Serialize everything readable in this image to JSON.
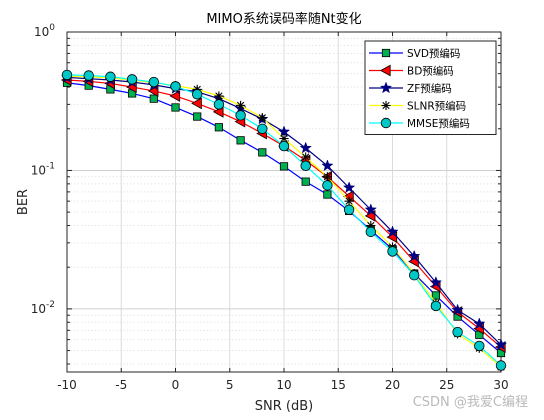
{
  "chart_data": {
    "type": "line",
    "title": "MIMO系统误码率随Nt变化",
    "xlabel": "SNR (dB)",
    "ylabel": "BER",
    "x_ticks": [
      "-10",
      "-5",
      "0",
      "5",
      "10",
      "15",
      "20",
      "25",
      "30"
    ],
    "y_ticks": [
      {
        "base": "10",
        "exp": "0"
      },
      {
        "base": "10",
        "exp": "-1"
      },
      {
        "base": "10",
        "exp": "-2"
      }
    ],
    "xlim": [
      -10,
      30
    ],
    "ylim": [
      0.0035,
      1
    ],
    "yscale": "log",
    "grid": true,
    "legend_position": "top-right",
    "x": [
      -10,
      -8,
      -6,
      -4,
      -2,
      0,
      2,
      4,
      6,
      8,
      10,
      12,
      14,
      16,
      18,
      20,
      22,
      24,
      26,
      28,
      30
    ],
    "series": [
      {
        "name": "SVD预编码",
        "color": "#0000ff",
        "marker": "square",
        "marker_fill": "#00b050",
        "values": [
          0.43,
          0.41,
          0.385,
          0.36,
          0.33,
          0.285,
          0.245,
          0.205,
          0.165,
          0.135,
          0.107,
          0.083,
          0.067,
          0.051,
          0.037,
          0.027,
          0.018,
          0.0125,
          0.0088,
          0.0065,
          0.0048
        ]
      },
      {
        "name": "BD预编码",
        "color": "#ff0000",
        "marker": "triangle-left",
        "marker_fill": "#ff0000",
        "values": [
          0.45,
          0.44,
          0.425,
          0.4,
          0.375,
          0.345,
          0.305,
          0.265,
          0.225,
          0.185,
          0.15,
          0.118,
          0.09,
          0.065,
          0.047,
          0.033,
          0.022,
          0.0145,
          0.0095,
          0.0072,
          0.0053
        ]
      },
      {
        "name": "ZF预编码",
        "color": "#000080",
        "marker": "star",
        "marker_fill": "#000080",
        "values": [
          0.47,
          0.46,
          0.45,
          0.435,
          0.415,
          0.39,
          0.37,
          0.33,
          0.28,
          0.235,
          0.19,
          0.145,
          0.108,
          0.075,
          0.052,
          0.036,
          0.024,
          0.0155,
          0.0098,
          0.0078,
          0.0055
        ]
      },
      {
        "name": "SLNR预编码",
        "color": "#ffff00",
        "marker": "asterisk",
        "marker_fill": "#000000",
        "values": [
          0.48,
          0.475,
          0.465,
          0.45,
          0.43,
          0.41,
          0.385,
          0.345,
          0.295,
          0.24,
          0.17,
          0.125,
          0.09,
          0.06,
          0.04,
          0.028,
          0.018,
          0.011,
          0.0066,
          0.0052,
          0.0038
        ]
      },
      {
        "name": "MMSE预编码",
        "color": "#00ffff",
        "marker": "circle",
        "marker_fill": "#00c8c8",
        "values": [
          0.49,
          0.485,
          0.475,
          0.455,
          0.435,
          0.405,
          0.355,
          0.3,
          0.25,
          0.2,
          0.15,
          0.108,
          0.078,
          0.052,
          0.036,
          0.026,
          0.0175,
          0.0105,
          0.0068,
          0.0054,
          0.0039
        ]
      }
    ]
  },
  "watermark": "CSDN @我爱C编程"
}
